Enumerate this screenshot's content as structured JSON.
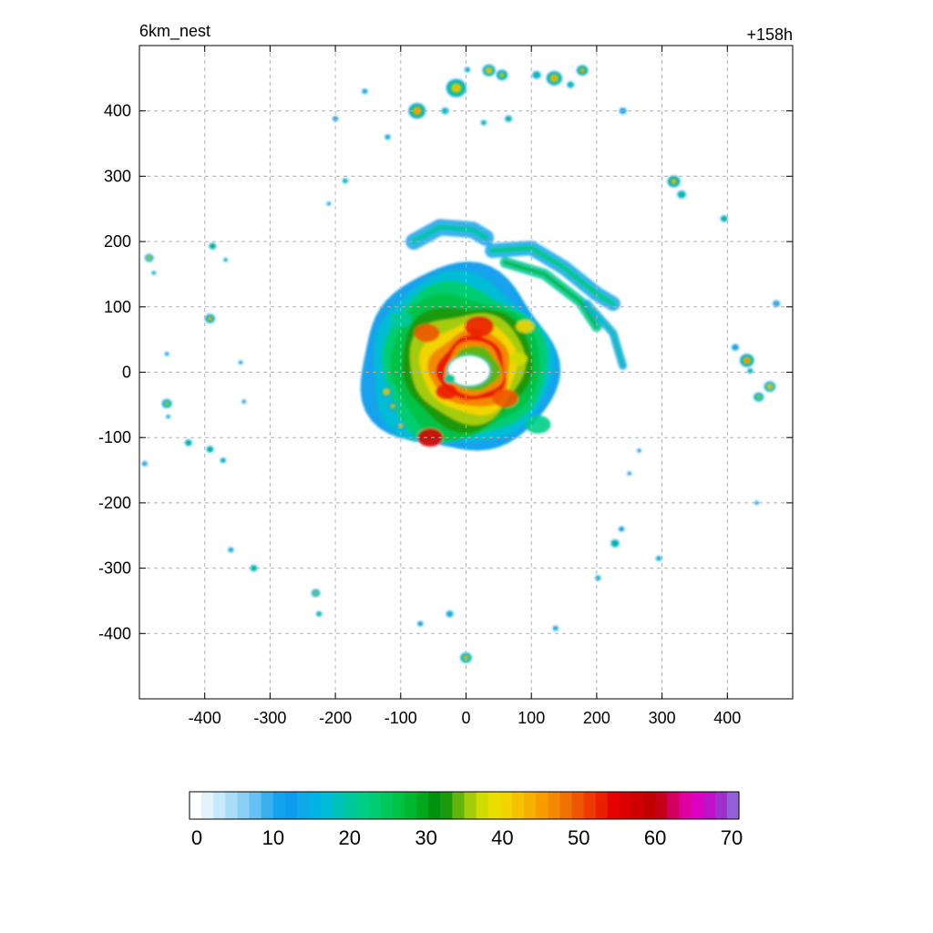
{
  "chart_data": {
    "type": "heatmap",
    "title_left": "6km_nest",
    "title_right": "+158h",
    "xlim": [
      -500,
      500
    ],
    "ylim": [
      -500,
      500
    ],
    "x_ticks": [
      -400,
      -300,
      -200,
      -100,
      0,
      100,
      200,
      300,
      400
    ],
    "y_ticks": [
      400,
      300,
      200,
      100,
      0,
      -100,
      -200,
      -300,
      -400
    ],
    "x_tick_labels": [
      "-400",
      "-300",
      "-200",
      "-100",
      "0",
      "100",
      "200",
      "300",
      "400"
    ],
    "y_tick_labels": [
      "400",
      "300",
      "200",
      "100",
      "0",
      "-100",
      "-200",
      "-300",
      "-400"
    ],
    "grid": true,
    "colorbar": {
      "min": 0,
      "max": 70,
      "tick_values": [
        0,
        10,
        20,
        30,
        40,
        50,
        60,
        70
      ],
      "tick_labels": [
        "0",
        "10",
        "20",
        "30",
        "40",
        "50",
        "60",
        "70"
      ],
      "colors": [
        "#ffffff",
        "#e3f3fc",
        "#c6e8fa",
        "#a9dcf7",
        "#8ad0f4",
        "#64c1f1",
        "#38b0ee",
        "#14a2ec",
        "#0d9ced",
        "#11a8ea",
        "#00b3e6",
        "#00bcd4",
        "#00c2b8",
        "#00c89c",
        "#00ce86",
        "#00cd72",
        "#00c85c",
        "#00c246",
        "#00b830",
        "#00a81c",
        "#00920e",
        "#1c9a0c",
        "#63b40c",
        "#a4cc08",
        "#d2dc00",
        "#eade00",
        "#f2d400",
        "#f6c200",
        "#f8b000",
        "#f89c00",
        "#f48800",
        "#f07200",
        "#ee5600",
        "#ec3a00",
        "#ea1e00",
        "#e60000",
        "#da0000",
        "#ce0000",
        "#c20000",
        "#c4001a",
        "#d40060",
        "#e000a0",
        "#dc00c0",
        "#c010c8",
        "#a030cc",
        "#9460d8"
      ]
    },
    "fields": {
      "eyewall_center": [
        10,
        5
      ],
      "eye_radius_km": [
        45,
        30
      ],
      "peak_value": 55,
      "cells": [
        {
          "x": -75,
          "y": 400,
          "r": 12,
          "v": 50
        },
        {
          "x": -15,
          "y": 435,
          "r": 14,
          "v": 45
        },
        {
          "x": 35,
          "y": 462,
          "r": 9,
          "v": 45
        },
        {
          "x": 55,
          "y": 455,
          "r": 8,
          "v": 38
        },
        {
          "x": 135,
          "y": 450,
          "r": 11,
          "v": 48
        },
        {
          "x": 178,
          "y": 462,
          "r": 8,
          "v": 40
        },
        {
          "x": 108,
          "y": 455,
          "r": 6,
          "v": 22
        },
        {
          "x": 160,
          "y": 440,
          "r": 5,
          "v": 22
        },
        {
          "x": -32,
          "y": 400,
          "r": 5,
          "v": 22
        },
        {
          "x": 65,
          "y": 388,
          "r": 5,
          "v": 25
        },
        {
          "x": 27,
          "y": 382,
          "r": 4,
          "v": 22
        },
        {
          "x": 2,
          "y": 463,
          "r": 4,
          "v": 15
        },
        {
          "x": -155,
          "y": 430,
          "r": 4,
          "v": 18
        },
        {
          "x": -200,
          "y": 388,
          "r": 4,
          "v": 15
        },
        {
          "x": -120,
          "y": 360,
          "r": 4,
          "v": 18
        },
        {
          "x": -185,
          "y": 293,
          "r": 4,
          "v": 22
        },
        {
          "x": 240,
          "y": 400,
          "r": 5,
          "v": 12
        },
        {
          "x": 318,
          "y": 292,
          "r": 9,
          "v": 40
        },
        {
          "x": 330,
          "y": 272,
          "r": 6,
          "v": 25
        },
        {
          "x": 395,
          "y": 235,
          "r": 5,
          "v": 30
        },
        {
          "x": -485,
          "y": 175,
          "r": 6,
          "v": 38
        },
        {
          "x": -478,
          "y": 152,
          "r": 3,
          "v": 18
        },
        {
          "x": -388,
          "y": 193,
          "r": 5,
          "v": 32
        },
        {
          "x": -368,
          "y": 172,
          "r": 3,
          "v": 18
        },
        {
          "x": -392,
          "y": 82,
          "r": 7,
          "v": 40
        },
        {
          "x": -458,
          "y": 28,
          "r": 3,
          "v": 15
        },
        {
          "x": -458,
          "y": -48,
          "r": 7,
          "v": 35
        },
        {
          "x": -456,
          "y": -68,
          "r": 3,
          "v": 18
        },
        {
          "x": -425,
          "y": -108,
          "r": 5,
          "v": 30
        },
        {
          "x": -392,
          "y": -118,
          "r": 5,
          "v": 30
        },
        {
          "x": -372,
          "y": -135,
          "r": 4,
          "v": 20
        },
        {
          "x": -345,
          "y": 15,
          "r": 3,
          "v": 12
        },
        {
          "x": 430,
          "y": 18,
          "r": 10,
          "v": 50
        },
        {
          "x": 412,
          "y": 38,
          "r": 5,
          "v": 15
        },
        {
          "x": 465,
          "y": -22,
          "r": 8,
          "v": 45
        },
        {
          "x": 448,
          "y": -38,
          "r": 7,
          "v": 35
        },
        {
          "x": 435,
          "y": 2,
          "r": 4,
          "v": 20
        },
        {
          "x": 475,
          "y": 105,
          "r": 5,
          "v": 10
        },
        {
          "x": 295,
          "y": -285,
          "r": 4,
          "v": 20
        },
        {
          "x": 228,
          "y": -262,
          "r": 6,
          "v": 30
        },
        {
          "x": 238,
          "y": -240,
          "r": 4,
          "v": 15
        },
        {
          "x": 202,
          "y": -315,
          "r": 4,
          "v": 20
        },
        {
          "x": -360,
          "y": -272,
          "r": 4,
          "v": 18
        },
        {
          "x": -325,
          "y": -300,
          "r": 5,
          "v": 28
        },
        {
          "x": -230,
          "y": -338,
          "r": 6,
          "v": 35
        },
        {
          "x": -225,
          "y": -370,
          "r": 4,
          "v": 25
        },
        {
          "x": -25,
          "y": -370,
          "r": 5,
          "v": 18
        },
        {
          "x": -70,
          "y": -385,
          "r": 4,
          "v": 15
        },
        {
          "x": 0,
          "y": -437,
          "r": 8,
          "v": 42
        },
        {
          "x": 137,
          "y": -392,
          "r": 4,
          "v": 18
        },
        {
          "x": 265,
          "y": -120,
          "r": 3,
          "v": 12
        },
        {
          "x": 250,
          "y": -155,
          "r": 3,
          "v": 12
        },
        {
          "x": 445,
          "y": -200,
          "r": 3,
          "v": 12
        },
        {
          "x": -492,
          "y": -140,
          "r": 4,
          "v": 10
        },
        {
          "x": -122,
          "y": -30,
          "r": 9,
          "v": 45
        },
        {
          "x": -112,
          "y": -52,
          "r": 8,
          "v": 40
        },
        {
          "x": -100,
          "y": -82,
          "r": 7,
          "v": 42
        },
        {
          "x": -210,
          "y": 258,
          "r": 3,
          "v": 12
        },
        {
          "x": -340,
          "y": -45,
          "r": 3,
          "v": 12
        }
      ],
      "rainbands": [
        {
          "points": [
            [
              -80,
              200
            ],
            [
              -40,
              222
            ],
            [
              10,
              218
            ],
            [
              30,
              206
            ]
          ],
          "w": 18,
          "v": 12
        },
        {
          "points": [
            [
              40,
              186
            ],
            [
              100,
              190
            ],
            [
              150,
              160
            ],
            [
              200,
              120
            ],
            [
              225,
              105
            ]
          ],
          "w": 16,
          "v": 15
        },
        {
          "points": [
            [
              60,
              168
            ],
            [
              120,
              150
            ],
            [
              175,
              108
            ],
            [
              200,
              70
            ]
          ],
          "w": 12,
          "v": 20
        },
        {
          "points": [
            [
              185,
              105
            ],
            [
              225,
              60
            ],
            [
              240,
              10
            ]
          ],
          "w": 9,
          "v": 12
        }
      ]
    }
  }
}
